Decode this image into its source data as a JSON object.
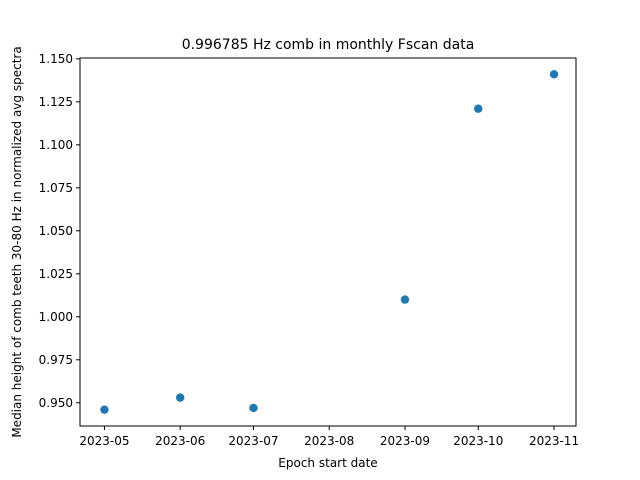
{
  "chart_data": {
    "type": "scatter",
    "title": "0.996785 Hz comb in monthly Fscan data",
    "xlabel": "Epoch start date",
    "ylabel": "Median height of comb teeth 30-80 Hz in normalized avg spectra",
    "x_ticks": [
      "2023-05",
      "2023-06",
      "2023-07",
      "2023-08",
      "2023-09",
      "2023-10",
      "2023-11"
    ],
    "y_ticks": [
      "0.950",
      "0.975",
      "1.000",
      "1.025",
      "1.050",
      "1.075",
      "1.100",
      "1.125",
      "1.150"
    ],
    "xlim": [
      "2023-04-21",
      "2023-11-10"
    ],
    "ylim": [
      0.9365,
      1.1505
    ],
    "marker_color": "#1f77b4",
    "points": [
      {
        "x": "2023-05-01",
        "y": 0.946
      },
      {
        "x": "2023-06-01",
        "y": 0.953
      },
      {
        "x": "2023-07-01",
        "y": 0.947
      },
      {
        "x": "2023-09-01",
        "y": 1.01
      },
      {
        "x": "2023-10-01",
        "y": 1.121
      },
      {
        "x": "2023-11-01",
        "y": 1.141
      }
    ],
    "grid": false,
    "legend": "none"
  }
}
